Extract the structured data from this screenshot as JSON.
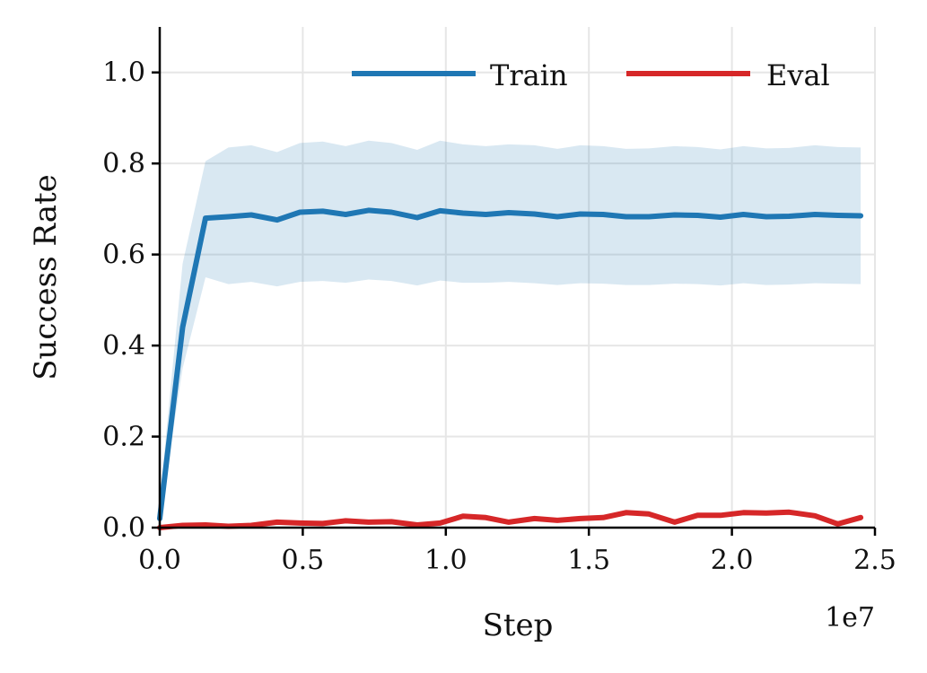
{
  "chart_data": {
    "type": "line",
    "xlabel": "Step",
    "ylabel": "Success Rate",
    "x_offset_label": "1e7",
    "xlim": [
      0,
      2.5
    ],
    "ylim": [
      0,
      1.1
    ],
    "x_ticks": [
      0.0,
      0.5,
      1.0,
      1.5,
      2.0,
      2.5
    ],
    "x_tick_labels": [
      "0.0",
      "0.5",
      "1.0",
      "1.5",
      "2.0",
      "2.5"
    ],
    "y_ticks": [
      0.0,
      0.2,
      0.4,
      0.6,
      0.8,
      1.0
    ],
    "y_tick_labels": [
      "0.0",
      "0.2",
      "0.4",
      "0.6",
      "0.8",
      "1.0"
    ],
    "grid": true,
    "legend_position": "top-right",
    "x": [
      0.0,
      0.08,
      0.16,
      0.24,
      0.32,
      0.41,
      0.49,
      0.57,
      0.65,
      0.73,
      0.81,
      0.9,
      0.98,
      1.06,
      1.14,
      1.22,
      1.31,
      1.39,
      1.47,
      1.55,
      1.63,
      1.71,
      1.8,
      1.88,
      1.96,
      2.04,
      2.12,
      2.2,
      2.29,
      2.37,
      2.45
    ],
    "series": [
      {
        "name": "Train",
        "color": "#1f77b4",
        "values": [
          0.02,
          0.44,
          0.68,
          0.683,
          0.687,
          0.676,
          0.693,
          0.695,
          0.688,
          0.697,
          0.693,
          0.681,
          0.696,
          0.691,
          0.688,
          0.692,
          0.689,
          0.683,
          0.689,
          0.688,
          0.683,
          0.683,
          0.687,
          0.686,
          0.682,
          0.688,
          0.683,
          0.684,
          0.688,
          0.686,
          0.685
        ],
        "band_lower": [
          0.02,
          0.35,
          0.55,
          0.535,
          0.54,
          0.53,
          0.54,
          0.542,
          0.538,
          0.545,
          0.542,
          0.532,
          0.543,
          0.538,
          0.538,
          0.54,
          0.537,
          0.533,
          0.537,
          0.536,
          0.533,
          0.533,
          0.536,
          0.535,
          0.532,
          0.537,
          0.533,
          0.534,
          0.537,
          0.536,
          0.535
        ],
        "band_upper": [
          0.06,
          0.58,
          0.805,
          0.835,
          0.84,
          0.825,
          0.845,
          0.848,
          0.838,
          0.85,
          0.845,
          0.83,
          0.85,
          0.842,
          0.838,
          0.842,
          0.84,
          0.832,
          0.84,
          0.838,
          0.832,
          0.833,
          0.838,
          0.836,
          0.831,
          0.838,
          0.833,
          0.834,
          0.84,
          0.836,
          0.835
        ]
      },
      {
        "name": "Eval",
        "color": "#d62728",
        "values": [
          0.0,
          0.005,
          0.006,
          0.003,
          0.005,
          0.012,
          0.01,
          0.009,
          0.015,
          0.012,
          0.013,
          0.006,
          0.01,
          0.025,
          0.022,
          0.012,
          0.02,
          0.016,
          0.02,
          0.022,
          0.033,
          0.03,
          0.012,
          0.027,
          0.027,
          0.033,
          0.032,
          0.034,
          0.026,
          0.008,
          0.022
        ]
      }
    ]
  }
}
